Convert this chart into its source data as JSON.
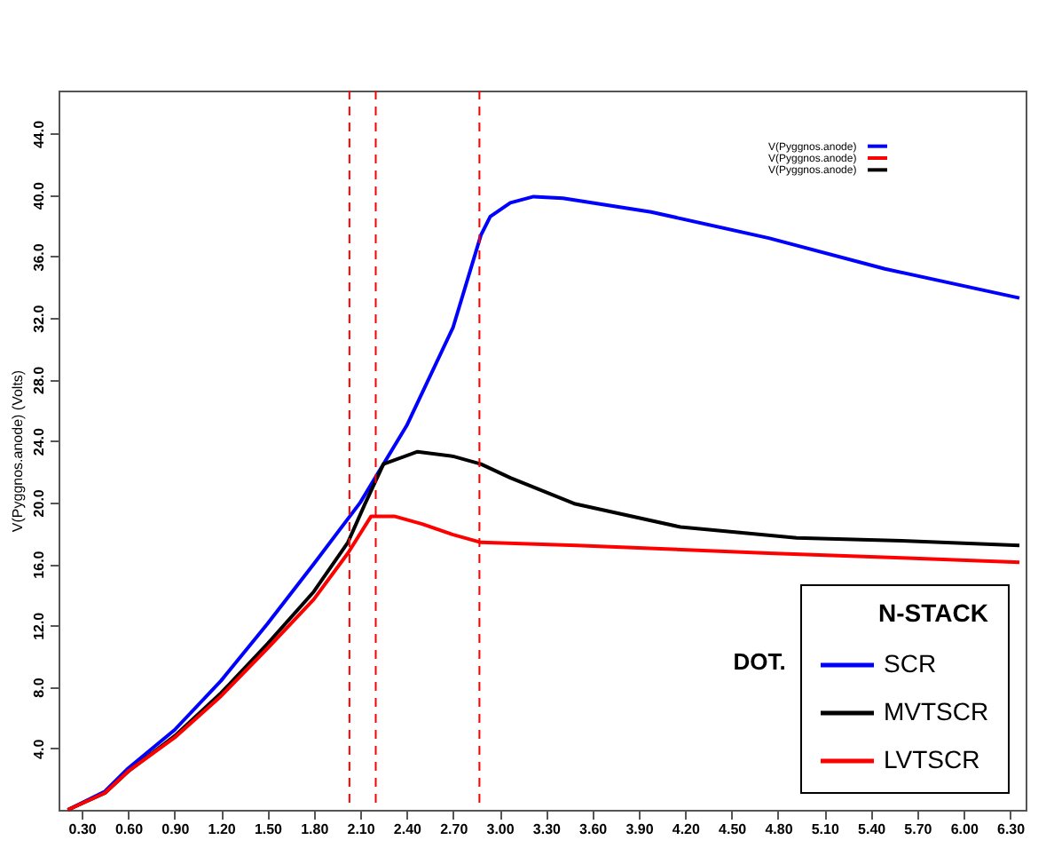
{
  "chart_data": {
    "type": "line",
    "ylabel": "V(Pyggnos.anode) (Volts)",
    "legend_title": "N-STACK",
    "annotations": [
      "DOT.",
      "V(Pyggnos.anode)",
      "V(Pyggnos.anode)",
      "V(Pyggnos.anode)"
    ],
    "xlim": [
      0.15,
      6.4
    ],
    "ylim": [
      0,
      46.8
    ],
    "xticks": [
      {
        "value": 0.3,
        "label": "0.30"
      },
      {
        "value": 0.6,
        "label": "0.60"
      },
      {
        "value": 0.9,
        "label": "0.90"
      },
      {
        "value": 1.2,
        "label": "1.20"
      },
      {
        "value": 1.5,
        "label": "1.50"
      },
      {
        "value": 1.8,
        "label": "1.80"
      },
      {
        "value": 2.1,
        "label": "2.10"
      },
      {
        "value": 2.4,
        "label": "2.40"
      },
      {
        "value": 2.7,
        "label": "2.70"
      },
      {
        "value": 3.0,
        "label": "3.00"
      },
      {
        "value": 3.3,
        "label": "3.30"
      },
      {
        "value": 3.6,
        "label": "3.60"
      },
      {
        "value": 3.9,
        "label": "3.90"
      },
      {
        "value": 4.2,
        "label": "4.20"
      },
      {
        "value": 4.5,
        "label": "4.50"
      },
      {
        "value": 4.8,
        "label": "4.80"
      },
      {
        "value": 5.1,
        "label": "5.10"
      },
      {
        "value": 5.4,
        "label": "5.40"
      },
      {
        "value": 5.7,
        "label": "5.70"
      },
      {
        "value": 6.0,
        "label": "6.00"
      },
      {
        "value": 6.3,
        "label": "6.30"
      }
    ],
    "yticks": [
      {
        "value": 4,
        "label": "4.0"
      },
      {
        "value": 8,
        "label": "8.0"
      },
      {
        "value": 12,
        "label": "12.0"
      },
      {
        "value": 16,
        "label": "16.0"
      },
      {
        "value": 20,
        "label": "20.0"
      },
      {
        "value": 24,
        "label": "24.0"
      },
      {
        "value": 28,
        "label": "28.0"
      },
      {
        "value": 32,
        "label": "32.0"
      },
      {
        "value": 36,
        "label": "36.0"
      },
      {
        "value": 40,
        "label": "40.0"
      },
      {
        "value": 44,
        "label": "44.0"
      }
    ],
    "grid": false,
    "legend": "bottom right",
    "line_style": "solid",
    "marker": "none",
    "ref_lines": [
      {
        "axis": "x",
        "value": 2.03,
        "color": "#ff0000",
        "line_style": "dashed"
      },
      {
        "axis": "x",
        "value": 2.2,
        "color": "#ff0000",
        "line_style": "dashed"
      },
      {
        "axis": "x",
        "value": 2.87,
        "color": "#ff0000",
        "line_style": "dashed"
      }
    ],
    "series": [
      {
        "name": "SCR",
        "color": "#0000ff",
        "x": [
          0.21,
          0.45,
          0.6,
          0.9,
          1.2,
          1.5,
          1.8,
          2.1,
          2.4,
          2.7,
          2.88,
          2.94,
          3.07,
          3.22,
          3.41,
          3.98,
          4.74,
          5.49,
          6.36
        ],
        "values": [
          0,
          1.2,
          2.7,
          5.2,
          8.4,
          12.1,
          16.0,
          20.0,
          25.0,
          31.4,
          37.4,
          38.6,
          39.5,
          39.9,
          39.8,
          38.9,
          37.2,
          35.2,
          33.3
        ]
      },
      {
        "name": "MVTSCR",
        "color": "#000000",
        "x": [
          0.21,
          0.45,
          0.6,
          0.9,
          1.2,
          1.5,
          1.8,
          2.02,
          2.13,
          2.25,
          2.47,
          2.7,
          2.88,
          3.07,
          3.49,
          4.17,
          4.92,
          5.6,
          6.36
        ],
        "values": [
          0,
          1.1,
          2.5,
          4.8,
          7.6,
          10.8,
          14.2,
          17.4,
          19.9,
          22.5,
          23.3,
          23.0,
          22.5,
          21.6,
          19.9,
          18.4,
          17.7,
          17.5,
          17.2
        ]
      },
      {
        "name": "LVTSCR",
        "color": "#ff0000",
        "x": [
          0.21,
          0.45,
          0.6,
          0.9,
          1.2,
          1.5,
          1.8,
          2.02,
          2.17,
          2.32,
          2.5,
          2.7,
          2.88,
          3.5,
          4.74,
          5.6,
          6.36
        ],
        "values": [
          0,
          1.1,
          2.5,
          4.7,
          7.4,
          10.5,
          13.7,
          16.7,
          19.1,
          19.1,
          18.6,
          17.9,
          17.4,
          17.2,
          16.7,
          16.4,
          16.1
        ]
      }
    ]
  }
}
